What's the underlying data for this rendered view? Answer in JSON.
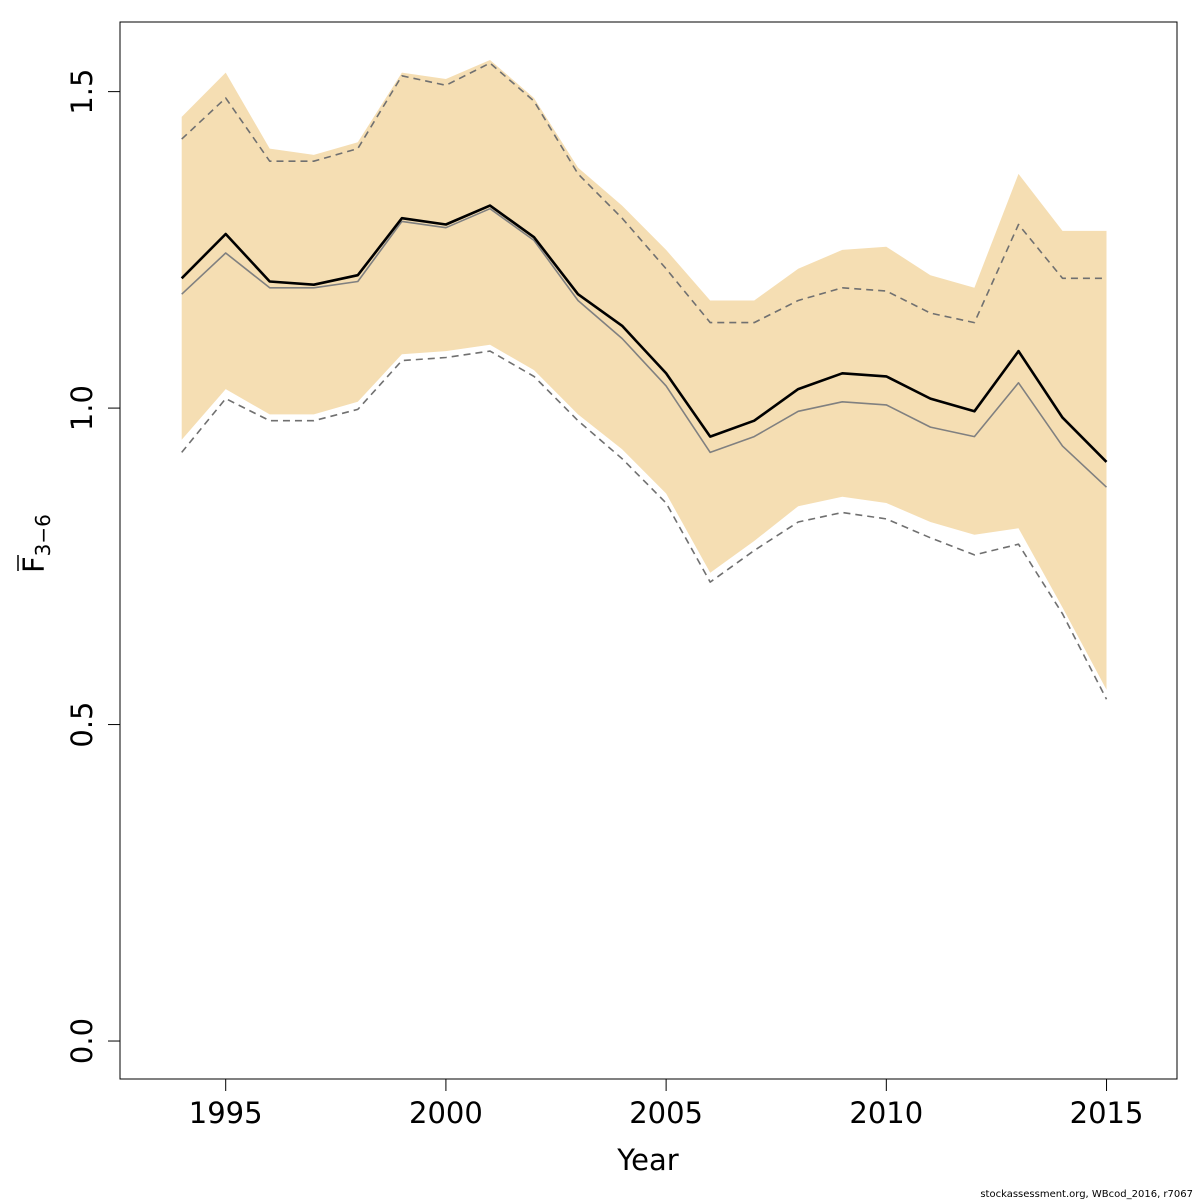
{
  "chart_data": {
    "type": "line",
    "xlabel": "Year",
    "ylabel_main": "F",
    "ylabel_sub": "3−6",
    "xlim": [
      1992.6,
      2016.6
    ],
    "ylim": [
      -0.06,
      1.61
    ],
    "x_ticks": [
      1995,
      2000,
      2005,
      2010,
      2015
    ],
    "x_tick_labels": [
      "1995",
      "2000",
      "2005",
      "2010",
      "2015"
    ],
    "y_ticks": [
      0.0,
      0.5,
      1.0,
      1.5
    ],
    "y_tick_labels": [
      "0.0",
      "0.5",
      "1.0",
      "1.5"
    ],
    "grid": false,
    "years": [
      1994,
      1995,
      1996,
      1997,
      1998,
      1999,
      2000,
      2001,
      2002,
      2003,
      2004,
      2005,
      2006,
      2007,
      2008,
      2009,
      2010,
      2011,
      2012,
      2013,
      2014,
      2015
    ],
    "band": {
      "color": "#F5DEB3",
      "upper": [
        1.46,
        1.53,
        1.41,
        1.4,
        1.42,
        1.53,
        1.52,
        1.55,
        1.49,
        1.38,
        1.32,
        1.25,
        1.17,
        1.17,
        1.22,
        1.25,
        1.255,
        1.21,
        1.19,
        1.37,
        1.28,
        1.28
      ],
      "lower": [
        0.95,
        1.03,
        0.99,
        0.99,
        1.01,
        1.085,
        1.09,
        1.1,
        1.06,
        0.99,
        0.935,
        0.865,
        0.74,
        0.79,
        0.845,
        0.86,
        0.85,
        0.82,
        0.8,
        0.81,
        0.685,
        0.555
      ]
    },
    "series": [
      {
        "role": "estimate",
        "color": "#000000",
        "values": [
          1.205,
          1.275,
          1.2,
          1.195,
          1.21,
          1.3,
          1.29,
          1.32,
          1.27,
          1.18,
          1.13,
          1.055,
          0.955,
          0.98,
          1.03,
          1.055,
          1.05,
          1.015,
          0.995,
          1.09,
          0.985,
          0.915
        ]
      },
      {
        "role": "previous-estimate",
        "color": "#808080",
        "values": [
          1.18,
          1.245,
          1.19,
          1.19,
          1.2,
          1.295,
          1.285,
          1.315,
          1.265,
          1.17,
          1.11,
          1.035,
          0.93,
          0.955,
          0.995,
          1.01,
          1.005,
          0.97,
          0.955,
          1.04,
          0.94,
          0.875
        ]
      },
      {
        "role": "previous-upper",
        "color": "#707070",
        "dashed": true,
        "values": [
          1.425,
          1.49,
          1.39,
          1.39,
          1.41,
          1.525,
          1.51,
          1.545,
          1.485,
          1.37,
          1.3,
          1.22,
          1.135,
          1.135,
          1.17,
          1.19,
          1.185,
          1.15,
          1.135,
          1.29,
          1.205,
          1.205
        ]
      },
      {
        "role": "previous-lower",
        "color": "#707070",
        "dashed": true,
        "values": [
          0.93,
          1.015,
          0.98,
          0.98,
          0.998,
          1.075,
          1.08,
          1.09,
          1.05,
          0.98,
          0.92,
          0.85,
          0.725,
          0.775,
          0.82,
          0.835,
          0.825,
          0.795,
          0.768,
          0.785,
          0.675,
          0.54
        ]
      }
    ]
  },
  "footer": {
    "credit": "stockassessment.org, WBcod_2016, r7067"
  }
}
